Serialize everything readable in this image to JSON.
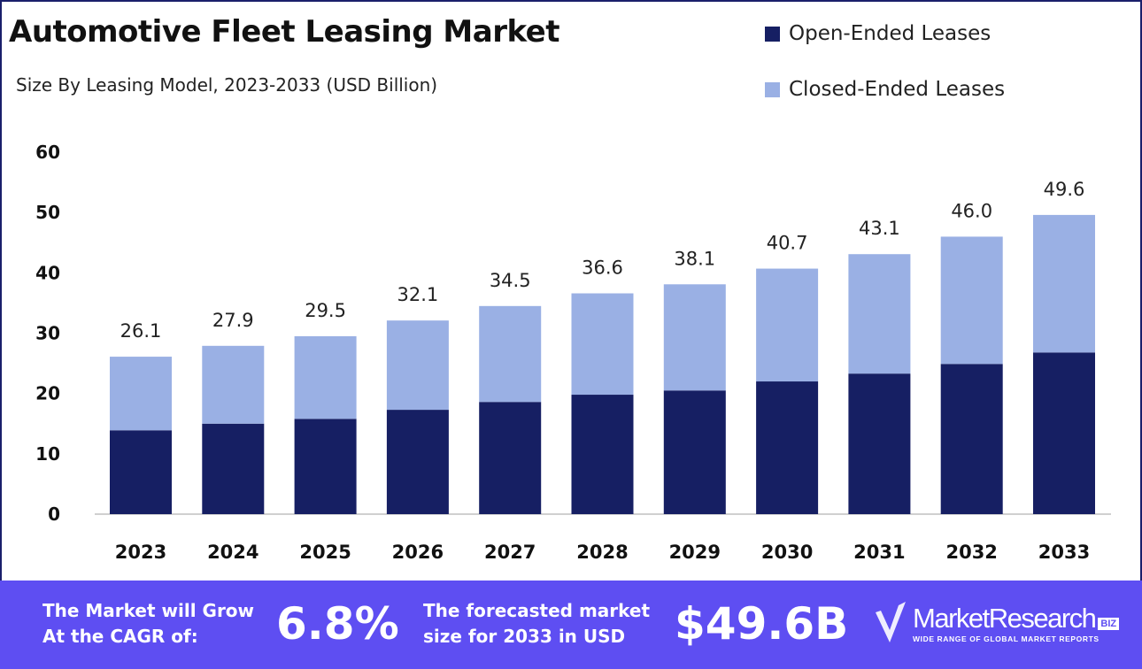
{
  "chart_data": {
    "type": "bar",
    "stacked": true,
    "title": "Automotive Fleet Leasing Market",
    "subtitle": "Size By Leasing Model, 2023-2033 (USD Billion)",
    "categories": [
      "2023",
      "2024",
      "2025",
      "2026",
      "2027",
      "2028",
      "2029",
      "2030",
      "2031",
      "2032",
      "2033"
    ],
    "series": [
      {
        "name": "Open-Ended Leases",
        "color": "#161f63",
        "values": [
          13.9,
          15.0,
          15.8,
          17.3,
          18.6,
          19.8,
          20.5,
          22.0,
          23.3,
          24.9,
          26.8
        ]
      },
      {
        "name": "Closed-Ended Leases",
        "color": "#9ab0e4",
        "values": [
          12.2,
          12.9,
          13.7,
          14.8,
          15.9,
          16.8,
          17.6,
          18.7,
          19.8,
          21.1,
          22.8
        ]
      }
    ],
    "totals": [
      "26.1",
      "27.9",
      "29.5",
      "32.1",
      "34.5",
      "36.6",
      "38.1",
      "40.7",
      "43.1",
      "46.0",
      "49.6"
    ],
    "yticks": [
      "0",
      "10",
      "20",
      "30",
      "40",
      "50",
      "60"
    ],
    "ylim": [
      0,
      60
    ],
    "grid": false,
    "legend_position": "top-right"
  },
  "footer": {
    "cagr_label": "The Market will Grow At the CAGR of:",
    "cagr_value": "6.8%",
    "forecast_label": "The forecasted market size for 2033 in USD",
    "forecast_value": "$49.6B",
    "logo_name": "MarketResearch",
    "logo_biz": "BIZ",
    "logo_tagline": "WIDE RANGE OF GLOBAL MARKET REPORTS",
    "background": "#5e4ef2"
  }
}
